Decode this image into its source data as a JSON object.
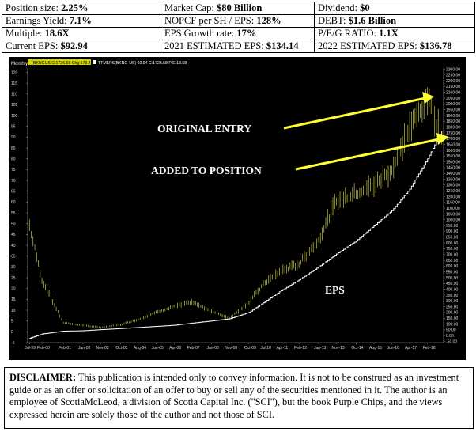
{
  "stats": {
    "rows": [
      [
        {
          "label": "Position size:",
          "value": "2.25%"
        },
        {
          "label": "Market Cap:",
          "value": "$80 Billion"
        },
        {
          "label": "Dividend:",
          "value": "$0"
        }
      ],
      [
        {
          "label": "Earnings Yield:",
          "value": "7.1%"
        },
        {
          "label": "NOPCF per SH / EPS:",
          "value": "128%"
        },
        {
          "label": "DEBT:",
          "value": "$1.6 Billion"
        }
      ],
      [
        {
          "label": "Multiple:",
          "value": "18.6X"
        },
        {
          "label": "EPS Growth rate:",
          "value": "17%"
        },
        {
          "label": "P/E/G RATIO:",
          "value": "1.1X"
        }
      ],
      [
        {
          "label": "Current EPS:",
          "value": "$92.94"
        },
        {
          "label": "2021 ESTIMATED EPS:",
          "value": "$134.14"
        },
        {
          "label": "2022 ESTIMATED EPS:",
          "value": "$136.78"
        }
      ]
    ]
  },
  "chart_data": {
    "type": "line",
    "header": {
      "tag": "Monthly",
      "price_text": "BKNGUS C:1726.58 Chg:179.42",
      "eps_text": "TTMEPS(BKNG-US) 92.94 C:1726.58 P/E:18.58"
    },
    "x_ticks": [
      "Jul-99",
      "Feb-00",
      "Feb-01",
      "Jan-02",
      "Nov-02",
      "Oct-03",
      "Aug-04",
      "Jun-05",
      "Apr-06",
      "Feb-07",
      "Jan-08",
      "Nov-08",
      "Oct-09",
      "Jul-10",
      "Apr-11",
      "Feb-12",
      "Jan-13",
      "Nov-13",
      "Oct-14",
      "Aug-15",
      "Jun-16",
      "Apr-17",
      "Feb-18"
    ],
    "left_axis": {
      "ticks": [
        120,
        115,
        110,
        105,
        100,
        95,
        90,
        85,
        80,
        75,
        70,
        65,
        60,
        55,
        50,
        45,
        40,
        35,
        30,
        25,
        20,
        15,
        10,
        5,
        0,
        -5
      ],
      "range": [
        -5,
        122
      ]
    },
    "right_axis": {
      "ticks": [
        "2300.00",
        "2250.00",
        "2200.00",
        "2150.00",
        "2100.00",
        "2050.00",
        "2000.00",
        "1950.00",
        "1900.00",
        "1850.00",
        "1800.00",
        "1750.00",
        "1700.00",
        "1650.00",
        "1600.00",
        "1550.00",
        "1500.00",
        "1450.00",
        "1400.00",
        "1350.00",
        "1300.00",
        "1250.00",
        "1200.00",
        "1150.00",
        "1100.00",
        "1050.00",
        "1000.00",
        "950.00",
        "900.00",
        "850.00",
        "800.00",
        "750.00",
        "700.00",
        "650.00",
        "600.00",
        "550.00",
        "500.00",
        "450.00",
        "400.00",
        "350.00",
        "300.00",
        "250.00",
        "200.00",
        "150.00",
        "100.00",
        "50.00",
        "0.00",
        "-50.00"
      ],
      "range": [
        -60,
        2310
      ]
    },
    "series": [
      {
        "color": "#c8c84a",
        "axis": "right",
        "x_date": [
          "Jul-99",
          "Feb-00",
          "Feb-01",
          "Jan-02",
          "Nov-02",
          "Oct-03",
          "Aug-04",
          "Jun-05",
          "Apr-06",
          "Feb-07",
          "Jan-08",
          "Nov-08",
          "Oct-09",
          "Jul-10",
          "Apr-11",
          "Feb-12",
          "Jan-13",
          "Nov-13",
          "Oct-14",
          "Aug-15",
          "Jun-16",
          "Apr-17",
          "Feb-18",
          "Oct-18"
        ],
        "values": [
          950,
          480,
          110,
          90,
          70,
          95,
          140,
          200,
          250,
          290,
          210,
          150,
          290,
          460,
          560,
          620,
          830,
          1170,
          1230,
          1300,
          1430,
          1790,
          2050,
          1726.58
        ]
      },
      {
        "color": "#ffffff",
        "axis": "left",
        "x_date": [
          "Jul-99",
          "Feb-00",
          "Feb-01",
          "Jan-02",
          "Nov-02",
          "Oct-03",
          "Aug-04",
          "Jun-05",
          "Apr-06",
          "Feb-07",
          "Jan-08",
          "Nov-08",
          "Oct-09",
          "Jul-10",
          "Apr-11",
          "Feb-12",
          "Jan-13",
          "Nov-13",
          "Oct-14",
          "Aug-15",
          "Jun-16",
          "Apr-17",
          "Feb-18",
          "Oct-18"
        ],
        "values": [
          -3,
          -1,
          0.3,
          0.5,
          1,
          1.5,
          2,
          2.5,
          3,
          4,
          5,
          6,
          9,
          14,
          19,
          24,
          30,
          36,
          42,
          49,
          56,
          66,
          80,
          92.94
        ]
      }
    ],
    "annotations": [
      {
        "text": "ORIGINAL ENTRY"
      },
      {
        "text": "ADDED TO POSITION"
      },
      {
        "text": "EPS"
      }
    ],
    "grid": false
  },
  "disclaimer": {
    "label": "DISCLAIMER:",
    "text": "This publication is intended only to convey information.  It is not to be construed as an investment guide or as an offer or solicitation of an offer to buy or sell any of the securities mentioned in it. The author is an employee of ScotiaMcLeod, a division of Scotia Capital Inc. (\"SCI\"), but the book Purple Chips, and the views expressed herein are solely those of the author and not those of SCI."
  }
}
